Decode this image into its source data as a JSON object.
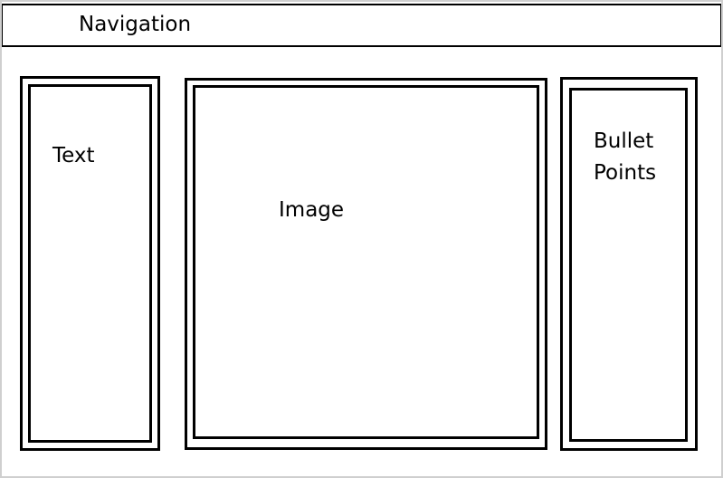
{
  "navigation": {
    "label": "Navigation"
  },
  "text_panel": {
    "label": "Text"
  },
  "image_panel": {
    "label": "Image"
  },
  "bullet_panel": {
    "label": "Bullet\nPoints"
  }
}
